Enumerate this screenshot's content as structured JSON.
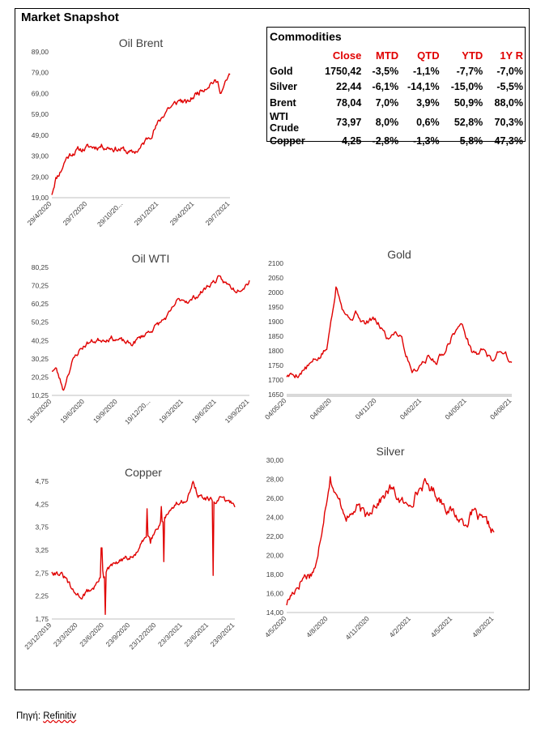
{
  "page": {
    "title": "Market Snapshot"
  },
  "table": {
    "title": "Commodities",
    "headers": [
      "",
      "Close",
      "MTD",
      "QTD",
      "YTD",
      "1Y R"
    ],
    "rows": [
      {
        "name": "Gold",
        "close": "1750,42",
        "mtd": "-3,5%",
        "qtd": "-1,1%",
        "ytd": "-7,7%",
        "y1": "-7,0%"
      },
      {
        "name": "Silver",
        "close": "22,44",
        "mtd": "-6,1%",
        "qtd": "-14,1%",
        "ytd": "-15,0%",
        "y1": "-5,5%"
      },
      {
        "name": "Brent",
        "close": "78,04",
        "mtd": "7,0%",
        "qtd": "3,9%",
        "ytd": "50,9%",
        "y1": "88,0%"
      },
      {
        "name": "WTI Crude",
        "close": "73,97",
        "mtd": "8,0%",
        "qtd": "0,6%",
        "ytd": "52,8%",
        "y1": "70,3%"
      },
      {
        "name": "Copper",
        "close": "4,25",
        "mtd": "-2,8%",
        "qtd": "-1,3%",
        "ytd": "5,8%",
        "y1": "47,3%"
      }
    ]
  },
  "source": {
    "label": "Πηγή: ",
    "name": "Refinitiv"
  },
  "colors": {
    "series": "#e00000",
    "header": "#e00000"
  },
  "chart_data": [
    {
      "id": "brent",
      "type": "line",
      "title": "Oil Brent",
      "yticks": [
        "19,00",
        "29,00",
        "39,00",
        "49,00",
        "59,00",
        "69,00",
        "79,00",
        "89,00"
      ],
      "ylim": [
        19,
        89
      ],
      "xticks": [
        "29/4/2020",
        "29/7/2020",
        "29/10/20...",
        "29/1/2021",
        "29/4/2021",
        "29/7/2021"
      ],
      "anchors": [
        [
          0,
          21
        ],
        [
          0.02,
          28
        ],
        [
          0.05,
          32
        ],
        [
          0.08,
          38
        ],
        [
          0.12,
          41
        ],
        [
          0.2,
          43
        ],
        [
          0.28,
          44
        ],
        [
          0.34,
          43
        ],
        [
          0.4,
          42
        ],
        [
          0.45,
          40
        ],
        [
          0.5,
          43
        ],
        [
          0.55,
          49
        ],
        [
          0.6,
          55
        ],
        [
          0.65,
          62
        ],
        [
          0.68,
          63
        ],
        [
          0.72,
          66
        ],
        [
          0.76,
          64
        ],
        [
          0.8,
          68
        ],
        [
          0.84,
          71
        ],
        [
          0.87,
          73
        ],
        [
          0.9,
          75
        ],
        [
          0.93,
          74
        ],
        [
          0.95,
          70
        ],
        [
          0.97,
          73
        ],
        [
          0.99,
          76
        ],
        [
          1,
          78
        ]
      ],
      "noise": 1.2,
      "n": 220,
      "seed": 11
    },
    {
      "id": "wti",
      "type": "line",
      "title": "Oil WTI",
      "yticks": [
        "10,25",
        "20,25",
        "30,25",
        "40,25",
        "50,25",
        "60,25",
        "70,25",
        "80,25"
      ],
      "ylim": [
        10.25,
        80.25
      ],
      "xticks": [
        "19/3/2020",
        "19/6/2020",
        "19/9/2020",
        "19/12/20...",
        "19/3/2021",
        "19/6/2021",
        "19/9/2021"
      ],
      "anchors": [
        [
          0,
          24
        ],
        [
          0.02,
          25
        ],
        [
          0.04,
          19
        ],
        [
          0.06,
          13
        ],
        [
          0.075,
          20
        ],
        [
          0.1,
          28
        ],
        [
          0.14,
          35
        ],
        [
          0.18,
          39
        ],
        [
          0.25,
          41
        ],
        [
          0.3,
          42
        ],
        [
          0.35,
          40
        ],
        [
          0.4,
          38
        ],
        [
          0.45,
          42
        ],
        [
          0.5,
          46
        ],
        [
          0.55,
          50
        ],
        [
          0.6,
          55
        ],
        [
          0.63,
          61
        ],
        [
          0.66,
          63
        ],
        [
          0.7,
          62
        ],
        [
          0.75,
          66
        ],
        [
          0.8,
          71
        ],
        [
          0.84,
          74
        ],
        [
          0.87,
          72
        ],
        [
          0.9,
          70
        ],
        [
          0.93,
          68
        ],
        [
          0.96,
          70
        ],
        [
          0.99,
          72
        ],
        [
          1,
          74
        ]
      ],
      "noise": 1.2,
      "n": 220,
      "seed": 23
    },
    {
      "id": "gold",
      "type": "line",
      "title": "Gold",
      "yticks": [
        "1650",
        "1700",
        "1750",
        "1800",
        "1850",
        "1900",
        "1950",
        "2000",
        "2050",
        "2100"
      ],
      "ylim": [
        1650,
        2100
      ],
      "xticks": [
        "04/05/20",
        "04/08/20",
        "04/11/20",
        "04/02/21",
        "04/05/21",
        "04/08/21"
      ],
      "anchors": [
        [
          0,
          1715
        ],
        [
          0.05,
          1720
        ],
        [
          0.1,
          1750
        ],
        [
          0.15,
          1780
        ],
        [
          0.18,
          1810
        ],
        [
          0.2,
          1920
        ],
        [
          0.22,
          2030
        ],
        [
          0.25,
          1950
        ],
        [
          0.28,
          1910
        ],
        [
          0.31,
          1930
        ],
        [
          0.35,
          1890
        ],
        [
          0.38,
          1910
        ],
        [
          0.42,
          1880
        ],
        [
          0.45,
          1840
        ],
        [
          0.48,
          1870
        ],
        [
          0.51,
          1855
        ],
        [
          0.53,
          1790
        ],
        [
          0.56,
          1730
        ],
        [
          0.6,
          1760
        ],
        [
          0.63,
          1780
        ],
        [
          0.66,
          1760
        ],
        [
          0.7,
          1800
        ],
        [
          0.74,
          1860
        ],
        [
          0.77,
          1890
        ],
        [
          0.79,
          1870
        ],
        [
          0.82,
          1800
        ],
        [
          0.85,
          1790
        ],
        [
          0.88,
          1810
        ],
        [
          0.91,
          1760
        ],
        [
          0.94,
          1800
        ],
        [
          0.97,
          1800
        ],
        [
          1,
          1750
        ]
      ],
      "noise": 9,
      "n": 220,
      "seed": 5
    },
    {
      "id": "copper",
      "type": "line",
      "title": "Copper",
      "yticks": [
        "1,75",
        "2,25",
        "2,75",
        "3,25",
        "3,75",
        "4,25",
        "4,75"
      ],
      "ylim": [
        1.75,
        4.75
      ],
      "xticks": [
        "23/12/2019",
        "23/3/2020",
        "23/6/2020",
        "23/9/2020",
        "23/12/2020",
        "23/3/2021",
        "23/6/2021",
        "23/9/2021"
      ],
      "anchors": [
        [
          0,
          2.8
        ],
        [
          0.04,
          2.75
        ],
        [
          0.08,
          2.6
        ],
        [
          0.12,
          2.3
        ],
        [
          0.16,
          2.25
        ],
        [
          0.2,
          2.35
        ],
        [
          0.23,
          2.45
        ],
        [
          0.26,
          2.6
        ],
        [
          0.3,
          2.8
        ],
        [
          0.35,
          2.95
        ],
        [
          0.4,
          3.05
        ],
        [
          0.45,
          3.1
        ],
        [
          0.48,
          3.3
        ],
        [
          0.52,
          3.55
        ],
        [
          0.56,
          3.65
        ],
        [
          0.6,
          3.9
        ],
        [
          0.64,
          4.1
        ],
        [
          0.68,
          4.25
        ],
        [
          0.72,
          4.3
        ],
        [
          0.75,
          4.5
        ],
        [
          0.77,
          4.7
        ],
        [
          0.8,
          4.45
        ],
        [
          0.84,
          4.35
        ],
        [
          0.88,
          4.3
        ],
        [
          0.92,
          4.35
        ],
        [
          0.96,
          4.3
        ],
        [
          1,
          4.25
        ]
      ],
      "noise": 0.05,
      "n": 220,
      "seed": 31,
      "spikes": [
        [
          0.27,
          3.3
        ],
        [
          0.275,
          3.3
        ],
        [
          0.28,
          2.8
        ],
        [
          0.29,
          1.85
        ],
        [
          0.52,
          4.15
        ],
        [
          0.54,
          3.4
        ],
        [
          0.6,
          4.2
        ],
        [
          0.61,
          3.0
        ],
        [
          0.88,
          2.7
        ],
        [
          0.885,
          4.3
        ]
      ]
    },
    {
      "id": "silver",
      "type": "line",
      "title": "Silver",
      "yticks": [
        "14,00",
        "16,00",
        "18,00",
        "20,00",
        "22,00",
        "24,00",
        "26,00",
        "28,00",
        "30,00"
      ],
      "ylim": [
        14,
        30
      ],
      "xticks": [
        "4/5/2020",
        "4/8/2020",
        "4/11/2020",
        "4/2/2021",
        "4/5/2021",
        "4/8/2021"
      ],
      "anchors": [
        [
          0,
          15
        ],
        [
          0.04,
          16.5
        ],
        [
          0.08,
          17.8
        ],
        [
          0.12,
          18.2
        ],
        [
          0.15,
          19.5
        ],
        [
          0.18,
          24.5
        ],
        [
          0.21,
          28.5
        ],
        [
          0.24,
          26
        ],
        [
          0.27,
          25
        ],
        [
          0.3,
          24
        ],
        [
          0.34,
          25
        ],
        [
          0.38,
          24
        ],
        [
          0.42,
          25.5
        ],
        [
          0.46,
          26
        ],
        [
          0.5,
          27
        ],
        [
          0.54,
          26
        ],
        [
          0.58,
          25
        ],
        [
          0.62,
          26.5
        ],
        [
          0.66,
          27.5
        ],
        [
          0.7,
          27
        ],
        [
          0.74,
          26
        ],
        [
          0.78,
          25
        ],
        [
          0.82,
          24
        ],
        [
          0.86,
          23.5
        ],
        [
          0.9,
          24.5
        ],
        [
          0.94,
          23.5
        ],
        [
          0.97,
          23
        ],
        [
          1,
          22.5
        ]
      ],
      "noise": 0.45,
      "n": 220,
      "seed": 17
    }
  ]
}
